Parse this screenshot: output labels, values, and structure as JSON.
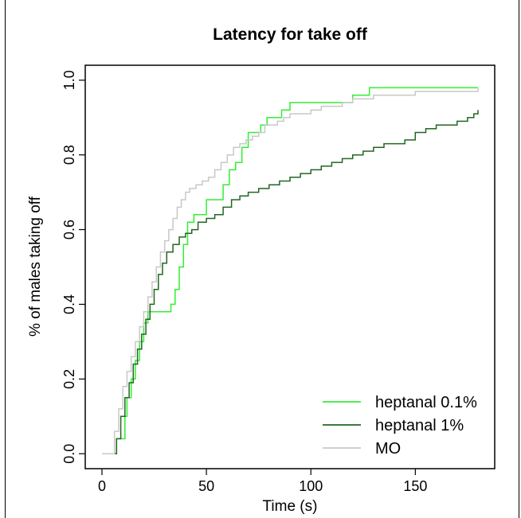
{
  "chart_data": {
    "type": "line",
    "step": true,
    "title": "Latency for take off",
    "xlabel": "Time (s)",
    "ylabel": "% of males taking off",
    "xlim": [
      -8,
      188
    ],
    "ylim": [
      -0.04,
      1.04
    ],
    "xticks": [
      0,
      50,
      100,
      150
    ],
    "yticks": [
      0.0,
      0.2,
      0.4,
      0.6,
      0.8,
      1.0
    ],
    "xtick_labels": [
      "0",
      "50",
      "100",
      "150"
    ],
    "ytick_labels": [
      "0.0",
      "0.2",
      "0.4",
      "0.6",
      "0.8",
      "1.0"
    ],
    "legend_position": "bottom-right",
    "series": [
      {
        "name": "heptanal 0.1%",
        "color": "#33ee33",
        "x": [
          0,
          6,
          7,
          9,
          11,
          12,
          14,
          16,
          18,
          20,
          22,
          24,
          26,
          29,
          33,
          35,
          37,
          39,
          41,
          44,
          47,
          50,
          55,
          58,
          61,
          64,
          67,
          70,
          72,
          76,
          79,
          82,
          86,
          90,
          95,
          100,
          110,
          120,
          125,
          128,
          180
        ],
        "y": [
          0,
          0,
          0.04,
          0.04,
          0.1,
          0.15,
          0.2,
          0.25,
          0.3,
          0.35,
          0.38,
          0.38,
          0.38,
          0.38,
          0.4,
          0.44,
          0.5,
          0.56,
          0.62,
          0.64,
          0.64,
          0.68,
          0.68,
          0.72,
          0.76,
          0.78,
          0.82,
          0.86,
          0.86,
          0.88,
          0.9,
          0.9,
          0.92,
          0.94,
          0.94,
          0.94,
          0.94,
          0.96,
          0.96,
          0.98,
          0.98
        ]
      },
      {
        "name": "heptanal 1%",
        "color": "#226622",
        "x": [
          0,
          5,
          7,
          9,
          11,
          13,
          15,
          17,
          19,
          21,
          23,
          25,
          27,
          29,
          31,
          34,
          37,
          40,
          43,
          46,
          50,
          54,
          58,
          62,
          66,
          70,
          75,
          80,
          85,
          90,
          95,
          100,
          105,
          110,
          115,
          120,
          125,
          130,
          135,
          140,
          145,
          150,
          155,
          160,
          165,
          170,
          175,
          178,
          180
        ],
        "y": [
          0,
          0,
          0.04,
          0.1,
          0.15,
          0.19,
          0.24,
          0.28,
          0.32,
          0.36,
          0.4,
          0.44,
          0.48,
          0.51,
          0.54,
          0.56,
          0.58,
          0.59,
          0.6,
          0.62,
          0.63,
          0.64,
          0.66,
          0.68,
          0.69,
          0.7,
          0.71,
          0.72,
          0.73,
          0.74,
          0.75,
          0.76,
          0.77,
          0.78,
          0.79,
          0.8,
          0.81,
          0.82,
          0.83,
          0.83,
          0.84,
          0.86,
          0.87,
          0.88,
          0.88,
          0.89,
          0.9,
          0.91,
          0.92
        ]
      },
      {
        "name": "MO",
        "color": "#c8c8c8",
        "x": [
          0,
          4,
          6,
          8,
          10,
          12,
          14,
          16,
          18,
          20,
          22,
          24,
          26,
          28,
          30,
          32,
          34,
          36,
          38,
          40,
          42,
          45,
          48,
          51,
          54,
          57,
          60,
          63,
          66,
          69,
          72,
          75,
          78,
          81,
          84,
          87,
          90,
          95,
          100,
          105,
          110,
          115,
          120,
          130,
          140,
          150,
          160,
          170,
          180
        ],
        "y": [
          0,
          0,
          0.06,
          0.12,
          0.18,
          0.22,
          0.26,
          0.3,
          0.34,
          0.38,
          0.42,
          0.46,
          0.5,
          0.54,
          0.57,
          0.6,
          0.63,
          0.66,
          0.68,
          0.7,
          0.71,
          0.72,
          0.73,
          0.74,
          0.76,
          0.78,
          0.8,
          0.82,
          0.83,
          0.84,
          0.85,
          0.86,
          0.88,
          0.88,
          0.89,
          0.9,
          0.91,
          0.91,
          0.92,
          0.93,
          0.93,
          0.94,
          0.95,
          0.96,
          0.96,
          0.97,
          0.97,
          0.97,
          0.98
        ]
      }
    ]
  }
}
